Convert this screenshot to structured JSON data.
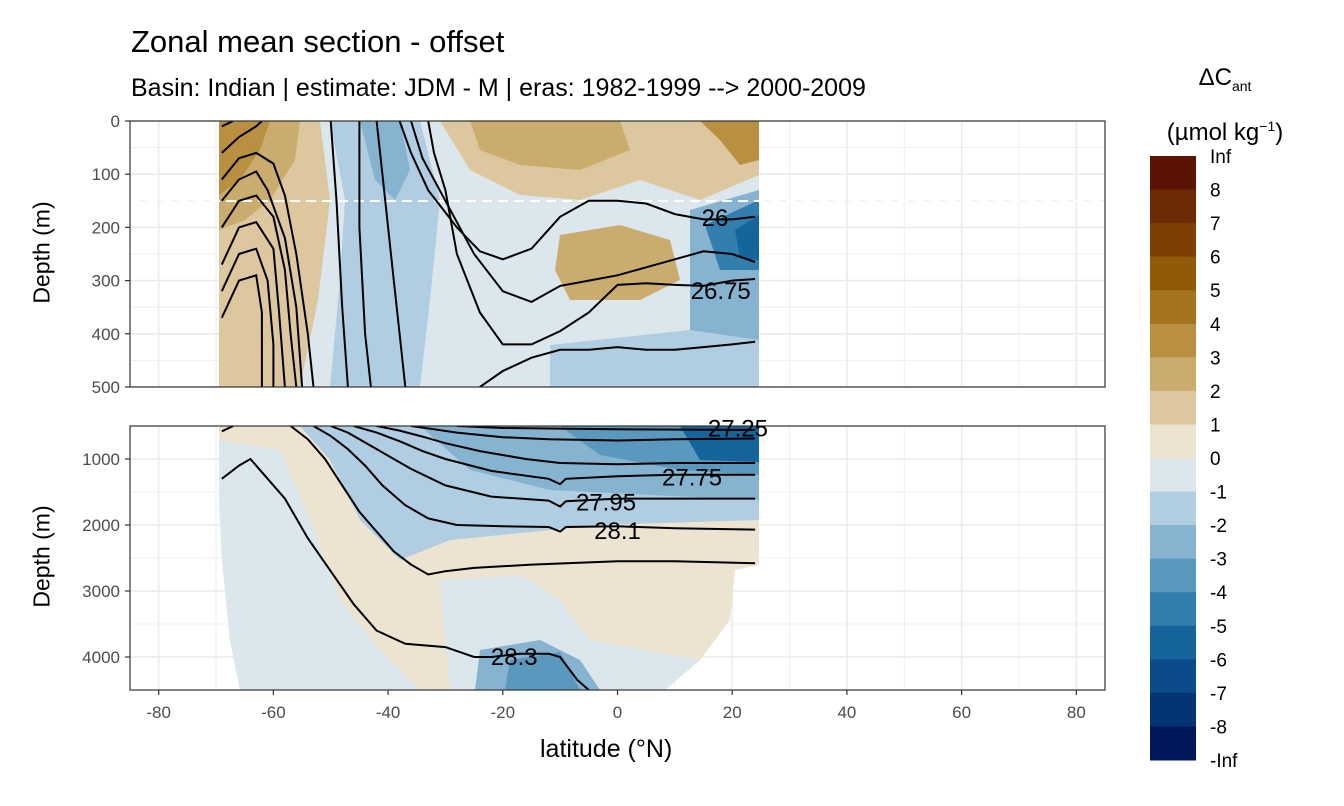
{
  "chart_data": {
    "type": "heatmap",
    "title": "Zonal mean section - offset",
    "subtitle": "Basin: Indian | estimate: JDM - M | eras: 1982-1999 --> 2000-2009",
    "xlabel": "latitude (°N)",
    "ylabel": "Depth (m)",
    "xlim": [
      -85,
      85
    ],
    "x_ticks": [
      "-80",
      "-60",
      "-40",
      "-20",
      "0",
      "20",
      "40",
      "60",
      "80"
    ],
    "panels": [
      {
        "name": "upper",
        "ylim": [
          0,
          500
        ],
        "y_ticks": [
          "0",
          "100",
          "200",
          "300",
          "400",
          "500"
        ]
      },
      {
        "name": "lower",
        "ylim": [
          500,
          4500
        ],
        "y_ticks": [
          "1000",
          "2000",
          "3000",
          "4000"
        ]
      }
    ],
    "data_extent_lat": [
      -70,
      24
    ],
    "reference_depth_dashed": 150,
    "legend": {
      "title_main": "ΔC",
      "title_sub": "ant",
      "unit_main": "(µmol kg",
      "unit_sup": "−1",
      "unit_end": ")",
      "labels": [
        "Inf",
        "8",
        "7",
        "6",
        "5",
        "4",
        "3",
        "2",
        "1",
        "0",
        "-1",
        "-2",
        "-3",
        "-4",
        "-5",
        "-6",
        "-7",
        "-8",
        "-Inf"
      ],
      "colors": [
        "#5c1304",
        "#6e2a04",
        "#7f3e03",
        "#905b08",
        "#a4741f",
        "#b98f42",
        "#cbac6f",
        "#dcc79e",
        "#ece3d0",
        "#dbe7ec",
        "#b1cde1",
        "#86b3cf",
        "#5a98bd",
        "#327ead",
        "#15649c",
        "#0b4b89",
        "#053474",
        "#01175c"
      ]
    },
    "isopycnal_labels": [
      {
        "text": "26",
        "lat": 17,
        "depth": 182
      },
      {
        "text": "26.75",
        "lat": 18,
        "depth": 320
      },
      {
        "text": "27.25",
        "lat": 21,
        "depth": 540
      },
      {
        "text": "27.75",
        "lat": 13,
        "depth": 1280
      },
      {
        "text": "27.95",
        "lat": -2,
        "depth": 1660
      },
      {
        "text": "28.1",
        "lat": 0,
        "depth": 2090
      },
      {
        "text": "28.3",
        "lat": -18,
        "depth": 4000
      }
    ]
  }
}
